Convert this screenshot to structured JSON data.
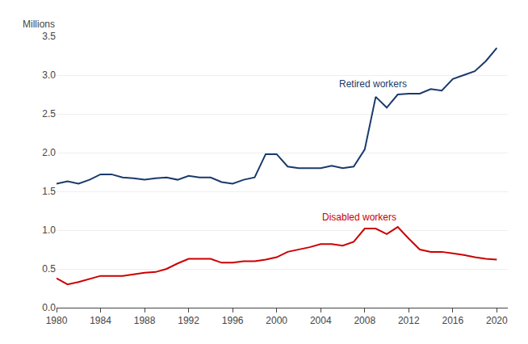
{
  "chart_data": {
    "type": "line",
    "ylabel": "Millions",
    "x": [
      1980,
      1981,
      1982,
      1983,
      1984,
      1985,
      1986,
      1987,
      1988,
      1989,
      1990,
      1991,
      1992,
      1993,
      1994,
      1995,
      1996,
      1997,
      1998,
      1999,
      2000,
      2001,
      2002,
      2003,
      2004,
      2005,
      2006,
      2007,
      2008,
      2009,
      2010,
      2011,
      2012,
      2013,
      2014,
      2015,
      2016,
      2017,
      2018,
      2019,
      2020
    ],
    "series": [
      {
        "name": "Retired workers",
        "color": "#1a3a6b",
        "values": [
          1.6,
          1.63,
          1.6,
          1.65,
          1.72,
          1.72,
          1.68,
          1.67,
          1.65,
          1.67,
          1.68,
          1.65,
          1.7,
          1.68,
          1.68,
          1.62,
          1.6,
          1.65,
          1.68,
          1.98,
          1.98,
          1.82,
          1.8,
          1.8,
          1.8,
          1.83,
          1.8,
          1.82,
          2.04,
          2.72,
          2.58,
          2.75,
          2.76,
          2.76,
          2.82,
          2.8,
          2.95,
          3.0,
          3.05,
          3.18,
          3.35
        ]
      },
      {
        "name": "Disabled workers",
        "color": "#cc0000",
        "values": [
          0.38,
          0.3,
          0.33,
          0.37,
          0.41,
          0.41,
          0.41,
          0.43,
          0.45,
          0.46,
          0.5,
          0.57,
          0.63,
          0.63,
          0.63,
          0.58,
          0.58,
          0.6,
          0.6,
          0.62,
          0.65,
          0.72,
          0.75,
          0.78,
          0.82,
          0.82,
          0.8,
          0.85,
          1.02,
          1.02,
          0.95,
          1.04,
          0.89,
          0.75,
          0.72,
          0.72,
          0.7,
          0.68,
          0.65,
          0.63,
          0.62
        ]
      }
    ],
    "xlim": [
      1980,
      2021
    ],
    "xticks": [
      1980,
      1984,
      1988,
      1992,
      1996,
      2000,
      2004,
      2008,
      2012,
      2016,
      2020
    ],
    "ylim": [
      0.0,
      3.5
    ],
    "yticks": [
      {
        "value": 0.0,
        "label": "0.0"
      },
      0.5,
      {
        "value": 1.0,
        "label": "1.0"
      },
      1.5,
      {
        "value": 2.0,
        "label": "2.0"
      },
      2.5,
      {
        "value": 3.0,
        "label": "3.0"
      },
      3.5
    ],
    "grid": "y"
  }
}
